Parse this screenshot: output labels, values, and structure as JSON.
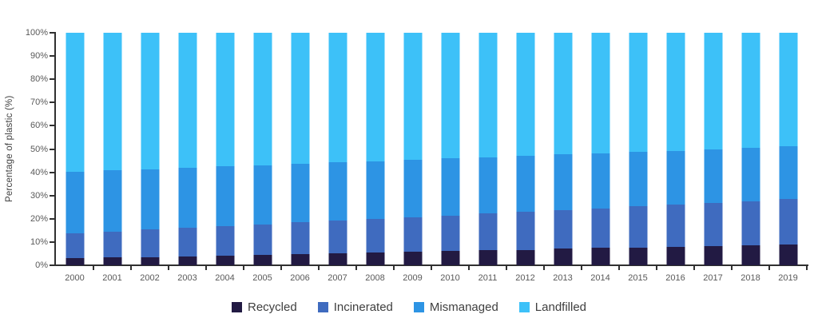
{
  "figure": {
    "background": "#ffffff",
    "axis_color": "#303030",
    "tick_text_color": "#595959",
    "legend_text_color": "#3f3f3f"
  },
  "chart_data": {
    "type": "bar",
    "stacked": true,
    "title": "",
    "xlabel": "",
    "ylabel": "Percentage of plastic (%)",
    "ylim": [
      0,
      100
    ],
    "grid": false,
    "legend_position": "bottom",
    "ytick_labels": [
      "0%",
      "10%",
      "20%",
      "30%",
      "40%",
      "50%",
      "60%",
      "70%",
      "80%",
      "90%",
      "100%"
    ],
    "categories": [
      "2000",
      "2001",
      "2002",
      "2003",
      "2004",
      "2005",
      "2006",
      "2007",
      "2008",
      "2009",
      "2010",
      "2011",
      "2012",
      "2013",
      "2014",
      "2015",
      "2016",
      "2017",
      "2018",
      "2019"
    ],
    "series": [
      {
        "name": "Recycled",
        "color": "#221a43",
        "values": [
          3.0,
          3.3,
          3.6,
          3.9,
          4.2,
          4.5,
          4.9,
          5.2,
          5.5,
          5.8,
          6.1,
          6.4,
          6.7,
          7.1,
          7.4,
          7.7,
          8.0,
          8.3,
          8.6,
          9.0
        ]
      },
      {
        "name": "Incinerated",
        "color": "#3f6bbf",
        "values": [
          10.8,
          11.3,
          11.7,
          12.2,
          12.6,
          13.1,
          13.5,
          14.0,
          14.4,
          14.9,
          15.3,
          15.8,
          16.2,
          16.7,
          17.1,
          17.6,
          18.0,
          18.5,
          18.9,
          19.4
        ]
      },
      {
        "name": "Mismanaged",
        "color": "#2d94e4",
        "values": [
          26.5,
          26.3,
          26.1,
          25.9,
          25.7,
          25.5,
          25.3,
          25.1,
          24.9,
          24.7,
          24.5,
          24.3,
          24.1,
          23.9,
          23.7,
          23.5,
          23.3,
          23.1,
          22.9,
          22.7
        ]
      },
      {
        "name": "Landfilled",
        "color": "#3dc1f8",
        "values": [
          59.7,
          59.1,
          58.6,
          58.0,
          57.5,
          56.9,
          56.3,
          55.7,
          55.2,
          54.6,
          54.1,
          53.5,
          53.0,
          52.3,
          51.8,
          51.2,
          50.7,
          50.1,
          49.6,
          48.9
        ]
      }
    ]
  }
}
